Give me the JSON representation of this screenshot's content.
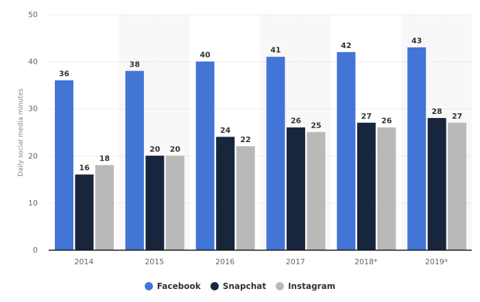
{
  "chart_data": {
    "type": "bar",
    "categories": [
      "2014",
      "2015",
      "2016",
      "2017",
      "2018*",
      "2019*"
    ],
    "series": [
      {
        "name": "Facebook",
        "values": [
          36,
          38,
          40,
          41,
          42,
          43
        ],
        "color": "#4275d6"
      },
      {
        "name": "Snapchat",
        "values": [
          16,
          20,
          24,
          26,
          27,
          28
        ],
        "color": "#17263c"
      },
      {
        "name": "Instagram",
        "values": [
          18,
          20,
          22,
          25,
          26,
          27
        ],
        "color": "#b9b9b9"
      }
    ],
    "title": "",
    "xlabel": "",
    "ylabel": "Daily social media minutes",
    "ylim": [
      0,
      50
    ],
    "yticks": [
      0,
      10,
      20,
      30,
      40,
      50
    ],
    "grid": true,
    "data_labels": true,
    "legend_position": "bottom"
  }
}
